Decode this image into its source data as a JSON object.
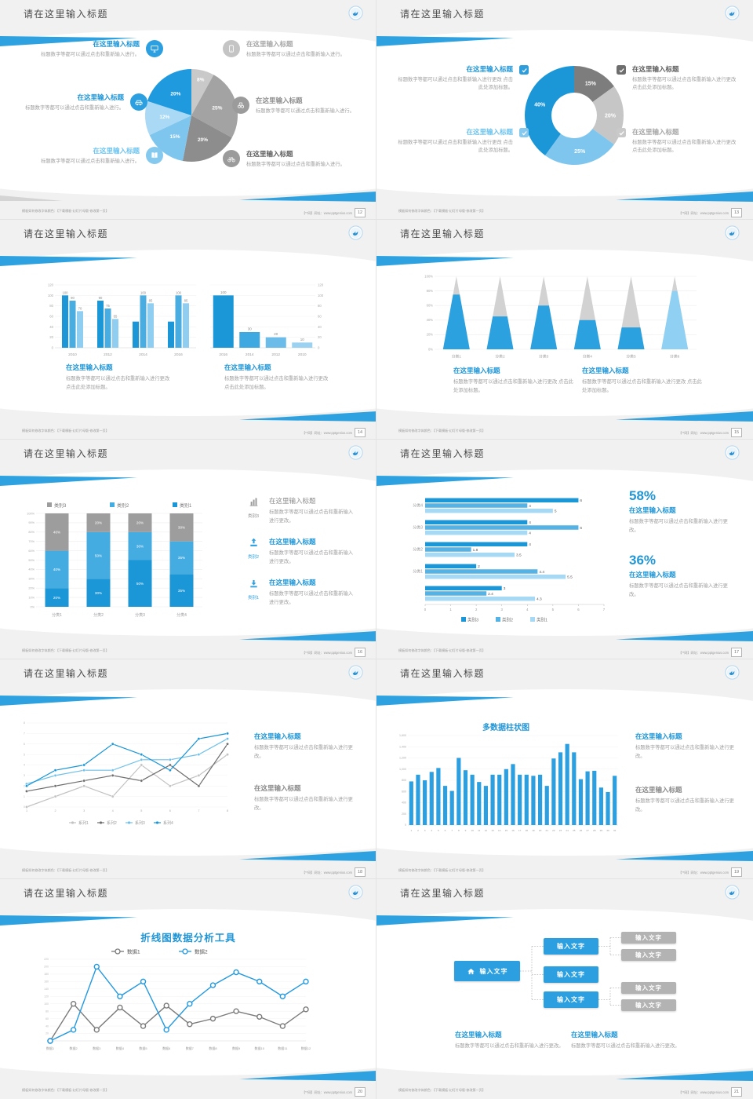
{
  "footer": {
    "left": "模板如何修改字体颜色：【下载模板-幻灯片母版-修改第一页】",
    "right": "【**网】网址：www.pptgenius.com"
  },
  "slides": [
    {
      "title": "请在这里输入标题",
      "page": "12",
      "left": [
        {
          "t": "在这里输入标题",
          "b": "标题数字等都可以通过点击和重新输入进行。"
        },
        {
          "t": "在这里输入标题",
          "b": "标题数字等都可以通过点击和重新输入进行。"
        },
        {
          "t": "在这里输入标题",
          "b": "标题数字等都可以通过点击和重新输入进行。"
        }
      ],
      "right": [
        {
          "t": "在这里输入标题",
          "b": "标题数字等都可以通过点击和重新输入进行。"
        },
        {
          "t": "在这里输入标题",
          "b": "标题数字等都可以通过点击和重新输入进行。"
        },
        {
          "t": "在这里输入标题",
          "b": "标题数字等都可以通过点击和重新输入进行。"
        }
      ]
    },
    {
      "title": "请在这里输入标题",
      "page": "13",
      "items": [
        {
          "t": "在这里输入标题",
          "b": "标题数字等都可以通过点击和重新输入进行更改 点击此处添加标题。"
        },
        {
          "t": "在这里输入标题",
          "b": "标题数字等都可以通过点击和重新输入进行更改 点击此处添加标题。"
        },
        {
          "t": "在这里输入标题",
          "b": "标题数字等都可以通过点击和重新输入进行更改 点击此处添加标题。"
        },
        {
          "t": "在这里输入标题",
          "b": "标题数字等都可以通过点击和重新输入进行更改 点击此处添加标题。"
        }
      ]
    },
    {
      "title": "请在这里输入标题",
      "page": "14",
      "blocks": [
        {
          "t": "在这里输入标题",
          "b": "标题数字等都可以通过点击和重新输入进行更改 点击此处添加标题。"
        },
        {
          "t": "在这里输入标题",
          "b": "标题数字等都可以通过点击和重新输入进行更改 点击此处添加标题。"
        }
      ]
    },
    {
      "title": "请在这里输入标题",
      "page": "15",
      "blocks": [
        {
          "t": "在这里输入标题",
          "b": "标题数字等都可以通过点击和重新输入进行更改 点击此处添加标题。"
        },
        {
          "t": "在这里输入标题",
          "b": "标题数字等都可以通过点击和重新输入进行更改 点击此处添加标题。"
        }
      ]
    },
    {
      "title": "请在这里输入标题",
      "page": "16",
      "items": [
        {
          "cap": "类别3",
          "t": "在这里输入标题",
          "b": "标题数字等都可以通过点击和重新输入进行更改。"
        },
        {
          "cap": "类别2",
          "t": "在这里输入标题",
          "b": "标题数字等都可以通过点击和重新输入进行更改。"
        },
        {
          "cap": "类别1",
          "t": "在这里输入标题",
          "b": "标题数字等都可以通过点击和重新输入进行更改。"
        }
      ]
    },
    {
      "title": "请在这里输入标题",
      "page": "17",
      "stats": [
        {
          "v": "58%",
          "t": "在这里输入标题",
          "b": "标题数字等都可以通过点击和重新输入进行更改。"
        },
        {
          "v": "36%",
          "t": "在这里输入标题",
          "b": "标题数字等都可以通过点击和重新输入进行更改。"
        }
      ]
    },
    {
      "title": "请在这里输入标题",
      "page": "18",
      "blocks": [
        {
          "t": "在这里输入标题",
          "b": "标题数字等都可以通过点击和重新输入进行更改。"
        },
        {
          "t": "在这里输入标题",
          "b": "标题数字等都可以通过点击和重新输入进行更改。"
        }
      ]
    },
    {
      "title": "请在这里输入标题",
      "page": "19",
      "blocks": [
        {
          "t": "在这里输入标题",
          "b": "标题数字等都可以通过点击和重新输入进行更改。"
        },
        {
          "t": "在这里输入标题",
          "b": "标题数字等都可以通过点击和重新输入进行更改。"
        }
      ]
    },
    {
      "title": "请在这里输入标题",
      "page": "20"
    },
    {
      "title": "请在这里输入标题",
      "page": "21",
      "root": "输入文字",
      "mids": [
        "输入文字",
        "输入文字",
        "输入文字"
      ],
      "leaves": [
        "输入文字",
        "输入文字",
        "输入文字",
        "输入文字"
      ],
      "blocks": [
        {
          "t": "在这里输入标题",
          "b": "标题数字等都可以通过点击和重新输入进行更改。"
        },
        {
          "t": "在这里输入标题",
          "b": "标题数字等都可以通过点击和重新输入进行更改。"
        }
      ]
    }
  ],
  "chart_data": [
    {
      "type": "pie",
      "values": [
        8,
        25,
        20,
        15,
        12,
        20
      ],
      "labels": [
        "8%",
        "25%",
        "20%",
        "15%",
        "12%",
        "20%"
      ],
      "colors": [
        "#c9c9c9",
        "#a3a3a3",
        "#8d8d8d",
        "#7fc6ef",
        "#a9d9f5",
        "#209ade"
      ]
    },
    {
      "type": "donut",
      "values": [
        15,
        20,
        25,
        40
      ],
      "labels": [
        "15%",
        "20%",
        "25%",
        "40%"
      ],
      "colors": [
        "#7d7d7d",
        "#c6c6c6",
        "#7fc6ef",
        "#1b96d6"
      ]
    },
    {
      "type": "grouped_bar",
      "categories": [
        "2010",
        "2012",
        "2014",
        "2016"
      ],
      "ylim": [
        0,
        120
      ],
      "yticks": [
        0,
        20,
        40,
        60,
        80,
        100,
        120
      ],
      "colors": [
        "#1b96d6",
        "#49ade2",
        "#8fcdf1"
      ],
      "series": [
        [
          100,
          90,
          50,
          50
        ],
        [
          90,
          75,
          100,
          100
        ],
        [
          70,
          55,
          85,
          85
        ]
      ],
      "bar_labels": [
        [
          "100",
          "90",
          "70"
        ],
        [
          "90",
          "75",
          "55"
        ],
        [
          "",
          "100",
          "85"
        ],
        [
          "",
          "100",
          "85"
        ]
      ]
    },
    {
      "type": "bar",
      "categories": [
        "2016",
        "2014",
        "2012",
        "2010"
      ],
      "values": [
        100,
        30,
        20,
        10
      ],
      "labels": [
        "100",
        "30",
        "20",
        "10"
      ],
      "ylim": [
        0,
        120
      ],
      "yticks": [
        0,
        20,
        40,
        60,
        80,
        100,
        120
      ],
      "colors": [
        "#1b96d6",
        "#3ea8e0",
        "#6cbcea",
        "#9bd2f2"
      ]
    },
    {
      "type": "pyramid",
      "categories": [
        "分类1",
        "分类2",
        "分类3",
        "分类4",
        "分类5",
        "分类6"
      ],
      "fill_pct": [
        75,
        45,
        60,
        40,
        30,
        80
      ],
      "yticks": [
        "0%",
        "20%",
        "40%",
        "60%",
        "80%",
        "100%"
      ],
      "fill_colors": [
        "#2ba1e0",
        "#2ba1e0",
        "#2ba1e0",
        "#2ba1e0",
        "#2ba1e0",
        "#8fd0f3"
      ],
      "rest_color": "#d2d2d2"
    },
    {
      "type": "stacked_bar",
      "categories": [
        "分类1",
        "分类2",
        "分类3",
        "分类4"
      ],
      "legend": [
        {
          "name": "类别3",
          "color": "#9d9d9d"
        },
        {
          "name": "类别2",
          "color": "#45ace2"
        },
        {
          "name": "类别1",
          "color": "#1b96d6"
        }
      ],
      "series": [
        {
          "name": "类别1",
          "color": "#1b96d6",
          "values": [
            20,
            30,
            50,
            35
          ]
        },
        {
          "name": "类别2",
          "color": "#45ace2",
          "values": [
            40,
            50,
            30,
            35
          ]
        },
        {
          "name": "类别3",
          "color": "#9d9d9d",
          "values": [
            40,
            20,
            20,
            30
          ]
        }
      ],
      "yticks": [
        "0%",
        "10%",
        "20%",
        "30%",
        "40%",
        "50%",
        "60%",
        "70%",
        "80%",
        "90%",
        "100%"
      ]
    },
    {
      "type": "hbar",
      "xticks": [
        0,
        1,
        2,
        3,
        4,
        5,
        6,
        7
      ],
      "xlim": [
        0,
        7
      ],
      "series_colors": [
        "#1b96d6",
        "#55b2e4",
        "#a8d9f4"
      ],
      "legend": [
        {
          "name": "类别3",
          "color": "#1b96d6"
        },
        {
          "name": "类别2",
          "color": "#55b2e4"
        },
        {
          "name": "类别1",
          "color": "#a8d9f4"
        }
      ],
      "groups": [
        {
          "label": "分类4",
          "values": [
            6,
            4,
            5
          ]
        },
        {
          "label": "分类3",
          "values": [
            4,
            6,
            4
          ]
        },
        {
          "label": "分类2",
          "values": [
            4,
            1.8,
            3.5
          ]
        },
        {
          "label": "分类1",
          "values": [
            2,
            4.4,
            5.5
          ]
        },
        {
          "label": "",
          "values": [
            3,
            2.4,
            4.3
          ]
        }
      ]
    },
    {
      "type": "line",
      "x": [
        1,
        2,
        3,
        4,
        5,
        6,
        7,
        8
      ],
      "ylim": [
        0,
        8
      ],
      "yticks": [
        0,
        1,
        2,
        3,
        4,
        5,
        6,
        7,
        8
      ],
      "series": [
        {
          "name": "系列1",
          "color": "#c2c2c2",
          "values": [
            0,
            1,
            2,
            1,
            4,
            2,
            3,
            5
          ]
        },
        {
          "name": "系列2",
          "color": "#6e6e6e",
          "values": [
            1.5,
            2,
            2.5,
            3,
            2.5,
            4,
            2,
            6
          ]
        },
        {
          "name": "系列3",
          "color": "#6fc0ea",
          "values": [
            2.2,
            3,
            3.5,
            3.5,
            4.5,
            4.5,
            5,
            6.5
          ]
        },
        {
          "name": "系列4",
          "color": "#1b96d6",
          "values": [
            2,
            3.5,
            4,
            6,
            5,
            3.5,
            6.5,
            7
          ]
        }
      ]
    },
    {
      "type": "column",
      "title": "多数据柱状图",
      "color": "#2b9fe0",
      "ylim": [
        0,
        1600
      ],
      "yticks": [
        "0",
        "200",
        "400",
        "600",
        "800",
        "1,000",
        "1,200",
        "1,400",
        "1,600"
      ],
      "categories": [
        "1",
        "2",
        "3",
        "4",
        "5",
        "6",
        "7",
        "8",
        "9",
        "10",
        "11",
        "12",
        "13",
        "14",
        "15",
        "16",
        "17",
        "18",
        "19",
        "20",
        "21",
        "22",
        "23",
        "24",
        "25",
        "26",
        "27",
        "28",
        "29",
        "30",
        "31"
      ],
      "values": [
        780,
        900,
        800,
        950,
        1020,
        700,
        610,
        1200,
        980,
        900,
        770,
        700,
        900,
        900,
        1000,
        1090,
        900,
        900,
        880,
        900,
        700,
        1190,
        1300,
        1450,
        1300,
        820,
        960,
        970,
        670,
        590,
        880
      ]
    },
    {
      "type": "line2",
      "title": "折线图数据分析工具",
      "ylim": [
        0,
        220
      ],
      "ytick_step": 20,
      "categories": [
        "数据1",
        "数据2",
        "数据3",
        "数据4",
        "数据5",
        "数据6",
        "数据7",
        "数据8",
        "数据9",
        "数据10",
        "数据11",
        "数据12"
      ],
      "series": [
        {
          "name": "数据1",
          "color": "#7a7a7a",
          "values": [
            0,
            100,
            30,
            90,
            40,
            95,
            45,
            60,
            80,
            65,
            40,
            85
          ]
        },
        {
          "name": "数据2",
          "color": "#2499e0",
          "values": [
            0,
            30,
            200,
            120,
            160,
            30,
            100,
            150,
            185,
            160,
            120,
            160
          ]
        }
      ]
    }
  ]
}
